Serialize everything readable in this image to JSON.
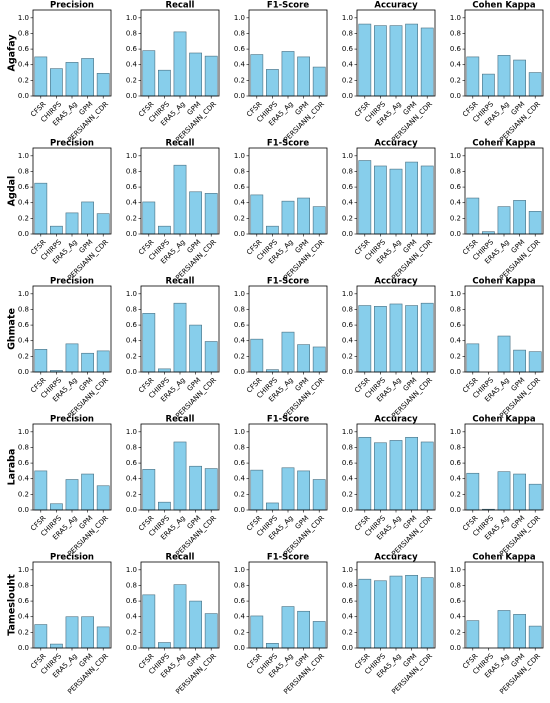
{
  "chart_data": {
    "type": "bar",
    "title": "",
    "layout": "5x5 panel grid; rows = sites, columns = metrics",
    "bar_color": "#87ceeb",
    "bar_edge_color": "#4a6f80",
    "ylim": [
      0,
      1.1
    ],
    "yticks": [
      "0.0",
      "0.2",
      "0.4",
      "0.6",
      "0.8",
      "1.0"
    ],
    "grid": false,
    "metrics": [
      "Precision",
      "Recall",
      "F1-Score",
      "Accuracy",
      "Cohen Kappa"
    ],
    "categories": [
      "CFSR",
      "CHIRPS",
      "ERA5_Ag",
      "GPM",
      "PERSIANN_CDR"
    ],
    "sites": [
      {
        "name": "Agafay",
        "values": {
          "Precision": [
            0.5,
            0.35,
            0.43,
            0.48,
            0.29
          ],
          "Recall": [
            0.58,
            0.33,
            0.82,
            0.55,
            0.51
          ],
          "F1-Score": [
            0.53,
            0.34,
            0.57,
            0.5,
            0.37
          ],
          "Accuracy": [
            0.92,
            0.9,
            0.9,
            0.92,
            0.87
          ],
          "Cohen Kappa": [
            0.5,
            0.28,
            0.52,
            0.46,
            0.3
          ]
        }
      },
      {
        "name": "Agdal",
        "values": {
          "Precision": [
            0.65,
            0.1,
            0.27,
            0.41,
            0.26
          ],
          "Recall": [
            0.41,
            0.1,
            0.88,
            0.54,
            0.52
          ],
          "F1-Score": [
            0.5,
            0.1,
            0.42,
            0.46,
            0.35
          ],
          "Accuracy": [
            0.94,
            0.87,
            0.83,
            0.92,
            0.87
          ],
          "Cohen Kappa": [
            0.46,
            0.03,
            0.35,
            0.43,
            0.29
          ]
        }
      },
      {
        "name": "Ghmate",
        "values": {
          "Precision": [
            0.29,
            0.02,
            0.36,
            0.24,
            0.27
          ],
          "Recall": [
            0.75,
            0.04,
            0.88,
            0.6,
            0.39
          ],
          "F1-Score": [
            0.42,
            0.03,
            0.51,
            0.35,
            0.32
          ],
          "Accuracy": [
            0.85,
            0.84,
            0.87,
            0.85,
            0.88
          ],
          "Cohen Kappa": [
            0.36,
            0.0,
            0.46,
            0.28,
            0.26
          ]
        }
      },
      {
        "name": "Laraba",
        "values": {
          "Precision": [
            0.5,
            0.08,
            0.39,
            0.46,
            0.31
          ],
          "Recall": [
            0.52,
            0.1,
            0.87,
            0.56,
            0.53
          ],
          "F1-Score": [
            0.51,
            0.09,
            0.54,
            0.5,
            0.39
          ],
          "Accuracy": [
            0.93,
            0.86,
            0.89,
            0.93,
            0.87
          ],
          "Cohen Kappa": [
            0.47,
            0.01,
            0.49,
            0.46,
            0.33
          ]
        }
      },
      {
        "name": "Tameslouht",
        "values": {
          "Precision": [
            0.3,
            0.05,
            0.4,
            0.4,
            0.27
          ],
          "Recall": [
            0.68,
            0.07,
            0.81,
            0.6,
            0.44
          ],
          "F1-Score": [
            0.41,
            0.06,
            0.53,
            0.47,
            0.34
          ],
          "Accuracy": [
            0.88,
            0.86,
            0.92,
            0.93,
            0.9
          ],
          "Cohen Kappa": [
            0.35,
            0.0,
            0.48,
            0.43,
            0.28
          ]
        }
      }
    ]
  }
}
